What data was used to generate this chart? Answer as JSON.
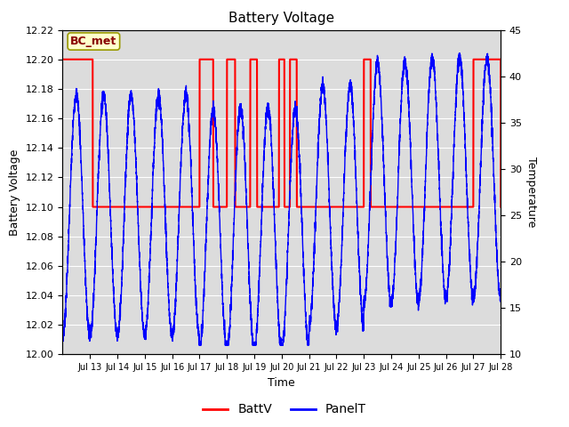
{
  "title": "Battery Voltage",
  "xlabel": "Time",
  "ylabel_left": "Battery Voltage",
  "ylabel_right": "Temperature",
  "ylim_left": [
    12.0,
    12.22
  ],
  "ylim_right": [
    10,
    45
  ],
  "bg_color": "#dcdcdc",
  "annotation_text": "BC_met",
  "annotation_bg": "#ffffcc",
  "annotation_border": "#999900",
  "annotation_text_color": "#880000",
  "batt_color": "red",
  "panel_color": "blue",
  "legend_batt": "BattV",
  "legend_panel": "PanelT",
  "yticks_left": [
    12.0,
    12.02,
    12.04,
    12.06,
    12.08,
    12.1,
    12.12,
    12.14,
    12.16,
    12.18,
    12.2,
    12.22
  ],
  "yticks_right": [
    10,
    15,
    20,
    25,
    30,
    35,
    40,
    45
  ],
  "tick_days": [
    1,
    2,
    3,
    4,
    5,
    6,
    7,
    8,
    9,
    10,
    11,
    12,
    13,
    14,
    15,
    16
  ],
  "tick_labels": [
    "Jul 13",
    "Jul 14",
    "Jul 15",
    "Jul 16",
    "Jul 17",
    "Jul 18",
    "Jul 19",
    "Jul 20",
    "Jul 21",
    "Jul 22",
    "Jul 23",
    "Jul 24",
    "Jul 25",
    "Jul 26",
    "Jul 27",
    "Jul 28"
  ]
}
